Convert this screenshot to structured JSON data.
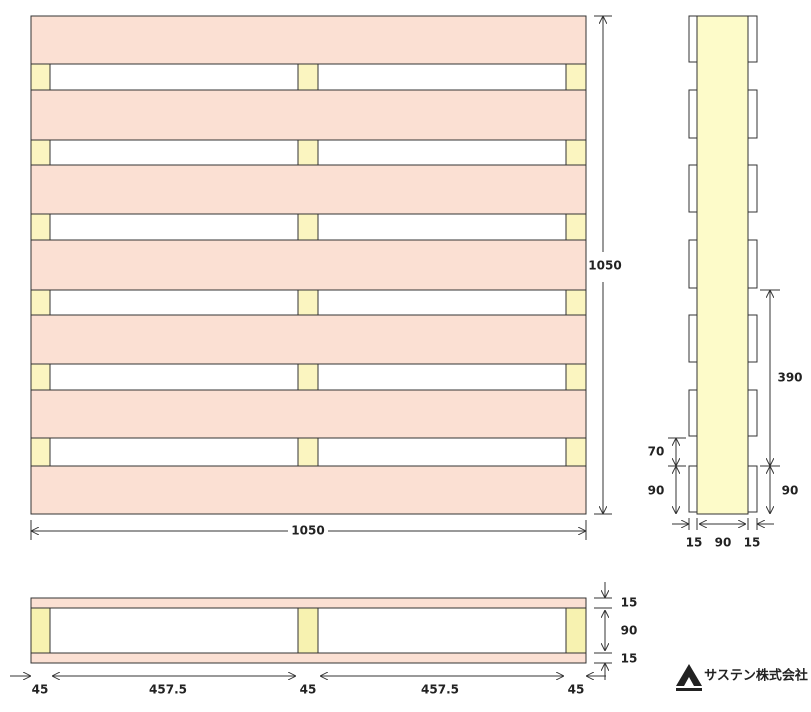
{
  "top_view": {
    "length": "1050",
    "width": "1050"
  },
  "side_view": {
    "block_spacing": "390",
    "block_height_right": "90",
    "board_gap": "70",
    "block_height_left": "90",
    "bottom_left": "15",
    "bottom_middle": "90",
    "bottom_right": "15"
  },
  "front_view": {
    "top_board": "15",
    "block_height": "90",
    "bottom_board": "15",
    "widths": [
      "45",
      "457.5",
      "45",
      "457.5",
      "45"
    ]
  },
  "logo": {
    "text": "サステン株式会社"
  }
}
